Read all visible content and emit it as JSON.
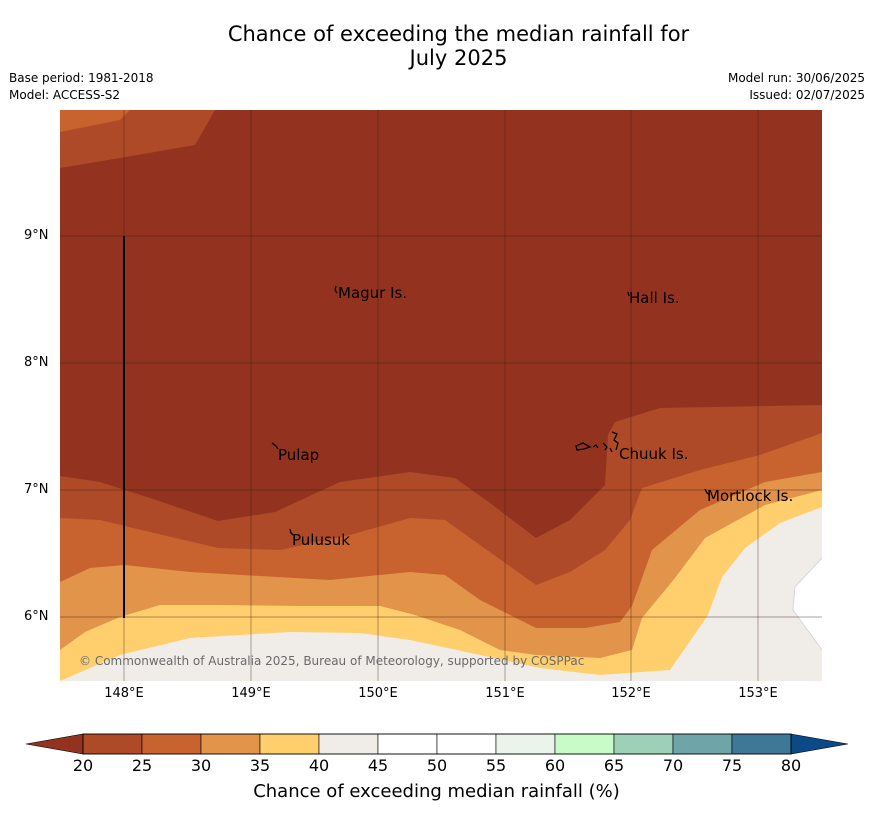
{
  "title": {
    "line1": "Chance of exceeding the median rainfall for",
    "line2": "July 2025"
  },
  "meta": {
    "base_period": "Base period: 1981-2018",
    "model": "Model: ACCESS-S2",
    "model_run": "Model run: 30/06/2025",
    "issued": "Issued: 02/07/2025"
  },
  "map": {
    "x_ticks": [
      "148°E",
      "149°E",
      "150°E",
      "151°E",
      "152°E",
      "153°E"
    ],
    "y_ticks": [
      "9°N",
      "8°N",
      "7°N",
      "6°N"
    ],
    "places": {
      "magur": "Magur Is.",
      "hall": "Hall Is.",
      "pulap": "Pulap",
      "chuuk": "Chuuk Is.",
      "mortlock": "Mortlock Is.",
      "pulusuk": "Pulusuk"
    },
    "copyright": "© Commonwealth of Australia 2025, Bureau of Meteorology, supported by COSPPac"
  },
  "colorbar": {
    "label": "Chance of exceeding median rainfall (%)",
    "ticks": [
      "20",
      "25",
      "30",
      "35",
      "40",
      "45",
      "50",
      "55",
      "60",
      "65",
      "70",
      "75",
      "80"
    ],
    "under_color": "#93331f",
    "over_color": "#0c4a87",
    "colors": [
      "#af4a28",
      "#c8632f",
      "#e2944a",
      "#ffcf6e",
      "#f0ece8",
      "#ffffff",
      "#ffffff",
      "#ebf4ea",
      "#c9fbc9",
      "#9ed0b8",
      "#6fa5a8",
      "#3e7897"
    ]
  }
}
